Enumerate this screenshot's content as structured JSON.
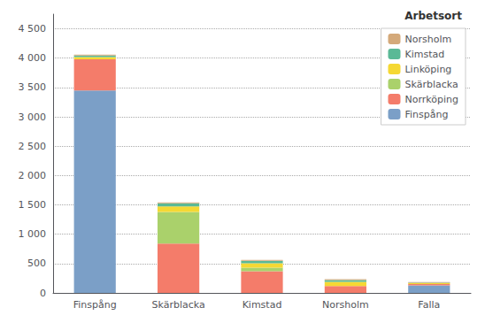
{
  "chart_data": {
    "type": "bar",
    "stacked": true,
    "legend_title": "Arbetsort",
    "categories": [
      "Finspång",
      "Skärblacka",
      "Kimstad",
      "Norsholm",
      "Falla"
    ],
    "series": [
      {
        "name": "Finspång",
        "color": "#7b9fc7",
        "values": [
          3450,
          0,
          0,
          0,
          130
        ]
      },
      {
        "name": "Norrköping",
        "color": "#f47c6a",
        "values": [
          530,
          840,
          370,
          115,
          20
        ]
      },
      {
        "name": "Skärblacka",
        "color": "#aad16b",
        "values": [
          0,
          540,
          60,
          0,
          0
        ]
      },
      {
        "name": "Linköping",
        "color": "#f5d833",
        "values": [
          40,
          95,
          75,
          75,
          15
        ]
      },
      {
        "name": "Kimstad",
        "color": "#5ab996",
        "values": [
          25,
          50,
          40,
          30,
          10
        ]
      },
      {
        "name": "Norsholm",
        "color": "#d4a97a",
        "values": [
          15,
          15,
          15,
          15,
          8
        ]
      }
    ],
    "ylim": [
      0,
      4750
    ],
    "yticks": [
      0,
      500,
      {
        "value": 1000,
        "label": "1 000"
      },
      {
        "value": 1500,
        "label": "1 500"
      },
      {
        "value": 2000,
        "label": "2 000"
      },
      {
        "value": 2500,
        "label": "2 500"
      },
      {
        "value": 3000,
        "label": "3 000"
      },
      {
        "value": 3500,
        "label": "3 500"
      },
      {
        "value": 4000,
        "label": "4 000"
      },
      {
        "value": 4500,
        "label": "4 500"
      }
    ],
    "grid": true,
    "legend": "upper right"
  }
}
